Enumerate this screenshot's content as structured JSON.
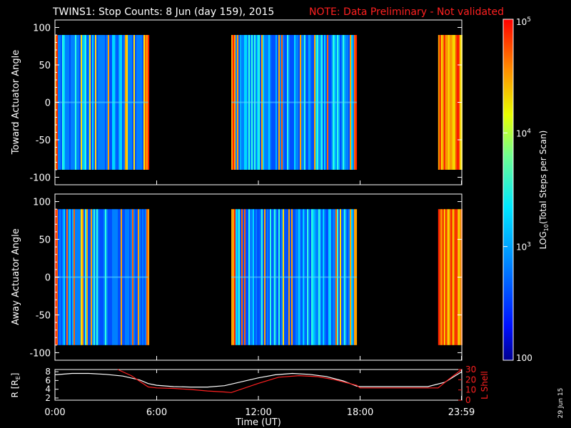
{
  "title": {
    "main": "TWINS1: Stop Counts:  8 Jun (day 159), 2015",
    "note": "NOTE: Data Preliminary - Not validated"
  },
  "side_stamp": "29 Jun 15",
  "colors": {
    "note": "#ff2020",
    "background": "#000000",
    "axes": "#ffffff",
    "r_line": "#ffffff",
    "lshell_line": "#ff2020"
  },
  "chart_data": [
    {
      "type": "heatmap",
      "id": "toward",
      "ylabel": "Toward Actuator Angle",
      "ylim": [
        -110,
        110
      ],
      "yticks": [
        -100,
        -50,
        0,
        50,
        100
      ],
      "ytick_labels": [
        "-100",
        "-50",
        "0",
        "50",
        "100"
      ],
      "x_range_hours": [
        0,
        24
      ],
      "data_blocks_hours": [
        [
          0.0,
          5.5
        ],
        [
          10.4,
          17.8
        ],
        [
          22.6,
          24.0
        ]
      ],
      "angle_range": [
        -90,
        90
      ]
    },
    {
      "type": "heatmap",
      "id": "away",
      "ylabel": "Away Actuator Angle",
      "ylim": [
        -110,
        110
      ],
      "yticks": [
        -100,
        -50,
        0,
        50,
        100
      ],
      "ytick_labels": [
        "-100",
        "-50",
        "0",
        "50",
        "100"
      ],
      "x_range_hours": [
        0,
        24
      ],
      "data_blocks_hours": [
        [
          0.0,
          5.5
        ],
        [
          10.4,
          17.8
        ],
        [
          22.6,
          24.0
        ]
      ],
      "angle_range": [
        -90,
        90
      ]
    },
    {
      "type": "line",
      "id": "orbit",
      "xlabel": "Time (UT)",
      "xticks_hours": [
        0,
        6,
        12,
        18,
        23.98
      ],
      "xtick_labels": [
        "0:00",
        "6:00",
        "12:00",
        "18:00",
        "23:59"
      ],
      "left_axis": {
        "label_prefix": "R [R",
        "label_sub": "E",
        "label_suffix": "]",
        "ylim": [
          1.5,
          8.5
        ],
        "ticks": [
          "2",
          "4",
          "6",
          "8"
        ],
        "tick_values": [
          2,
          4,
          6,
          8
        ]
      },
      "right_axis": {
        "label": "L Shell",
        "ylim": [
          0,
          30
        ],
        "ticks": [
          "0",
          "10",
          "20",
          "30"
        ],
        "tick_values": [
          0,
          10,
          20,
          30
        ]
      },
      "series": [
        {
          "name": "R",
          "axis": "left",
          "x": [
            0,
            1,
            2,
            3,
            4,
            5,
            5.5,
            6,
            7,
            8,
            9,
            10,
            11,
            12,
            13,
            14,
            15,
            16,
            17,
            17.8,
            18,
            20,
            22,
            23,
            24
          ],
          "y": [
            7.3,
            7.6,
            7.6,
            7.4,
            7.0,
            6.1,
            5.3,
            4.9,
            4.6,
            4.5,
            4.5,
            4.8,
            5.7,
            6.6,
            7.3,
            7.6,
            7.4,
            6.9,
            5.9,
            4.7,
            4.6,
            4.6,
            4.6,
            5.6,
            8.0
          ]
        },
        {
          "name": "L Shell",
          "axis": "right",
          "x": [
            3.7,
            4.5,
            5.5,
            6.0,
            7.0,
            8.0,
            9.0,
            10.0,
            10.4,
            12.0,
            13.2,
            14.4,
            15.5,
            16.5,
            17.8,
            18.0,
            20.0,
            22.6,
            23.2,
            24.0
          ],
          "y": [
            30,
            24,
            13,
            12,
            11.5,
            10.5,
            9.0,
            8.0,
            7.5,
            16.5,
            22.5,
            24.0,
            23.0,
            20.0,
            14.5,
            12.0,
            12.0,
            12.0,
            20.0,
            30
          ]
        }
      ]
    }
  ],
  "colorbar": {
    "scale": "log",
    "range": [
      100,
      100000
    ],
    "label_prefix": "LOG",
    "label_sub": "10",
    "label_suffix": "(Total Steps per Scan)",
    "ticks": [
      {
        "value": 100,
        "base": "100",
        "exp": ""
      },
      {
        "value": 1000,
        "base": "10",
        "exp": "3"
      },
      {
        "value": 10000,
        "base": "10",
        "exp": "4"
      },
      {
        "value": 100000,
        "base": "10",
        "exp": "5"
      }
    ]
  }
}
